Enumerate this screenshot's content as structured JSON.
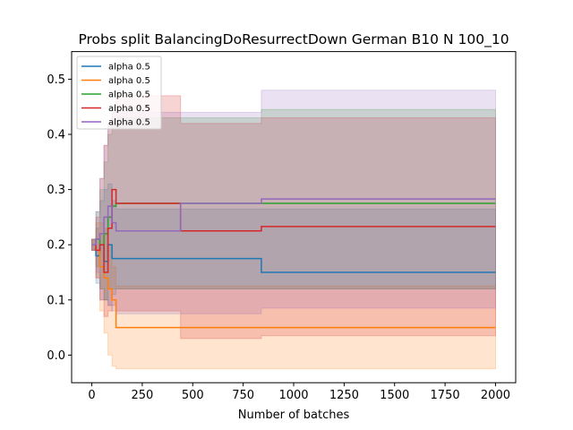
{
  "chart_data": {
    "type": "line",
    "title": "Probs split BalancingDoResurrectDown German B10 N 100_10",
    "xlabel": "Number of batches",
    "ylabel": "",
    "xlim": [
      -100,
      2100
    ],
    "ylim": [
      -0.05,
      0.55
    ],
    "xticks": [
      0,
      250,
      500,
      750,
      1000,
      1250,
      1500,
      1750,
      2000
    ],
    "yticks": [
      0.0,
      0.1,
      0.2,
      0.3,
      0.4,
      0.5
    ],
    "grid": false,
    "legend_position": "top-left",
    "series": [
      {
        "name": "alpha 0.5",
        "color": "#1f77b4",
        "x": [
          0,
          20,
          40,
          60,
          80,
          100,
          120,
          440,
          840,
          2000
        ],
        "y": [
          0.2,
          0.18,
          0.2,
          0.17,
          0.2,
          0.175,
          0.175,
          0.175,
          0.15,
          0.15
        ],
        "lower": [
          0.19,
          0.13,
          0.12,
          0.1,
          0.09,
          0.11,
          0.12,
          0.12,
          0.12,
          0.12
        ],
        "upper": [
          0.21,
          0.23,
          0.28,
          0.3,
          0.31,
          0.28,
          0.265,
          0.265,
          0.265,
          0.265
        ]
      },
      {
        "name": "alpha 0.5",
        "color": "#ff7f0e",
        "x": [
          0,
          20,
          40,
          60,
          80,
          100,
          120,
          440,
          840,
          2000
        ],
        "y": [
          0.2,
          0.19,
          0.16,
          0.14,
          0.12,
          0.1,
          0.05,
          0.05,
          0.05,
          0.05
        ],
        "lower": [
          0.19,
          0.14,
          0.08,
          0.04,
          0.0,
          -0.02,
          -0.025,
          -0.025,
          -0.025,
          -0.025
        ],
        "upper": [
          0.21,
          0.24,
          0.24,
          0.23,
          0.2,
          0.16,
          0.125,
          0.125,
          0.125,
          0.125
        ]
      },
      {
        "name": "alpha 0.5",
        "color": "#2ca02c",
        "x": [
          0,
          20,
          40,
          60,
          80,
          100,
          120,
          440,
          840,
          2000
        ],
        "y": [
          0.2,
          0.21,
          0.2,
          0.22,
          0.25,
          0.27,
          0.275,
          0.275,
          0.275,
          0.275
        ],
        "lower": [
          0.19,
          0.16,
          0.12,
          0.1,
          0.12,
          0.12,
          0.12,
          0.12,
          0.12,
          0.12
        ],
        "upper": [
          0.21,
          0.26,
          0.3,
          0.35,
          0.4,
          0.42,
          0.43,
          0.43,
          0.445,
          0.445
        ]
      },
      {
        "name": "alpha 0.5",
        "color": "#d62728",
        "x": [
          0,
          20,
          40,
          60,
          80,
          100,
          120,
          440,
          840,
          2000
        ],
        "y": [
          0.2,
          0.19,
          0.2,
          0.15,
          0.23,
          0.3,
          0.275,
          0.225,
          0.233,
          0.233
        ],
        "lower": [
          0.19,
          0.14,
          0.1,
          0.07,
          0.08,
          0.09,
          0.08,
          0.03,
          0.035,
          0.035
        ],
        "upper": [
          0.21,
          0.25,
          0.32,
          0.38,
          0.42,
          0.44,
          0.47,
          0.42,
          0.43,
          0.43
        ]
      },
      {
        "name": "alpha 0.5",
        "color": "#9467bd",
        "x": [
          0,
          20,
          40,
          60,
          80,
          100,
          120,
          440,
          840,
          2000
        ],
        "y": [
          0.2,
          0.21,
          0.22,
          0.25,
          0.27,
          0.24,
          0.225,
          0.275,
          0.283,
          0.283
        ],
        "lower": [
          0.19,
          0.15,
          0.1,
          0.1,
          0.09,
          0.08,
          0.075,
          0.075,
          0.085,
          0.085
        ],
        "upper": [
          0.21,
          0.26,
          0.32,
          0.38,
          0.42,
          0.44,
          0.44,
          0.44,
          0.48,
          0.48
        ]
      }
    ]
  }
}
